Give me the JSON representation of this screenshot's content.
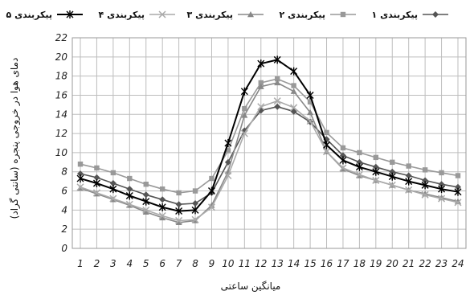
{
  "chart_data": {
    "type": "line",
    "title": "",
    "xlabel": "میانگین ساعتی",
    "ylabel": "دمای هوا در خروجی پنجره (سانتی گراد)",
    "x": [
      1,
      2,
      3,
      4,
      5,
      6,
      7,
      8,
      9,
      10,
      11,
      12,
      13,
      14,
      15,
      16,
      17,
      18,
      19,
      20,
      21,
      22,
      23,
      24
    ],
    "xlim": [
      1,
      24
    ],
    "ylim": [
      0,
      22
    ],
    "yticks": [
      0,
      2,
      4,
      6,
      8,
      10,
      12,
      14,
      16,
      18,
      20,
      22
    ],
    "grid": true,
    "legend_position": "top",
    "series": [
      {
        "name": "پیکربندی ۱",
        "color": "#555555",
        "marker": "diamond",
        "values": [
          7.8,
          7.4,
          6.8,
          6.2,
          5.6,
          5.1,
          4.6,
          4.7,
          5.8,
          9.0,
          12.3,
          14.4,
          14.8,
          14.3,
          13.2,
          11.4,
          9.7,
          9.0,
          8.5,
          8.0,
          7.6,
          7.1,
          6.7,
          6.4
        ]
      },
      {
        "name": "پیکربندی ۲",
        "color": "#999999",
        "marker": "square",
        "values": [
          8.8,
          8.4,
          7.9,
          7.3,
          6.7,
          6.2,
          5.8,
          6.0,
          7.3,
          10.2,
          14.6,
          17.3,
          17.7,
          17.0,
          15.3,
          12.1,
          10.5,
          10.0,
          9.5,
          9.0,
          8.6,
          8.2,
          7.9,
          7.6
        ]
      },
      {
        "name": "پیکربندی ۳",
        "color": "#888888",
        "marker": "triangle",
        "values": [
          6.3,
          5.7,
          5.1,
          4.5,
          3.8,
          3.2,
          2.7,
          2.9,
          4.5,
          8.0,
          13.9,
          16.9,
          17.3,
          16.4,
          14.2,
          10.1,
          8.3,
          7.6,
          7.1,
          6.6,
          6.1,
          5.7,
          5.3,
          4.9
        ]
      },
      {
        "name": "پیکربندی ۴",
        "color": "#aaaaaa",
        "marker": "x",
        "values": [
          6.4,
          5.8,
          5.2,
          4.6,
          4.0,
          3.4,
          2.9,
          3.0,
          4.3,
          7.6,
          12.0,
          14.8,
          15.4,
          14.7,
          13.3,
          10.1,
          8.4,
          7.7,
          7.1,
          6.6,
          6.1,
          5.6,
          5.2,
          4.8
        ]
      },
      {
        "name": "پیکربندی ۵",
        "color": "#000000",
        "marker": "star",
        "values": [
          7.3,
          6.8,
          6.2,
          5.5,
          4.9,
          4.3,
          3.9,
          4.0,
          6.0,
          11.0,
          16.4,
          19.3,
          19.7,
          18.5,
          16.0,
          10.8,
          9.2,
          8.5,
          8.0,
          7.5,
          7.0,
          6.6,
          6.2,
          5.9
        ]
      }
    ]
  }
}
